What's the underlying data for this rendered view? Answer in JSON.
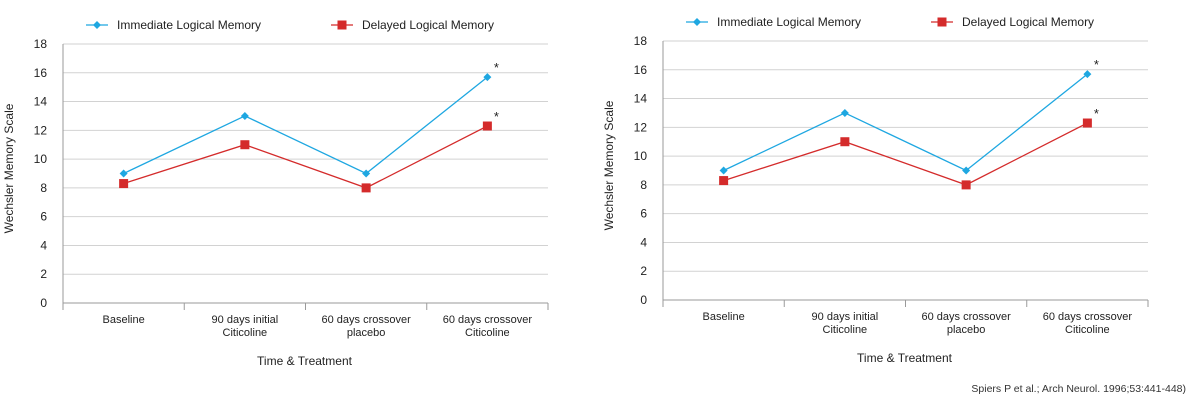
{
  "citation": "Spiers P et al.; Arch Neurol. 1996;53:441-448)",
  "chart_data": [
    {
      "type": "line",
      "ylabel": "Wechsler Memory Scale",
      "xlabel": "Time & Treatment",
      "ylim": [
        0,
        18
      ],
      "yticks": [
        0,
        2,
        4,
        6,
        8,
        10,
        12,
        14,
        16,
        18
      ],
      "grid": "horizontal",
      "legend": "top",
      "categories": [
        [
          "Baseline"
        ],
        [
          "90 days initial",
          "Citicoline"
        ],
        [
          "60 days crossover",
          "placebo"
        ],
        [
          "60 days crossover",
          "Citicoline"
        ]
      ],
      "series": [
        {
          "name": "Immediate Logical Memory",
          "marker": "diamond",
          "color": "#1ea7e1",
          "values": [
            9,
            13,
            9,
            15.7
          ]
        },
        {
          "name": "Delayed Logical Memory",
          "marker": "square",
          "color": "#d42b2b",
          "values": [
            8.3,
            11,
            8,
            12.3
          ]
        }
      ],
      "annotations": [
        {
          "text": "*",
          "series": 0,
          "index": 3
        },
        {
          "text": "*",
          "series": 1,
          "index": 3
        }
      ]
    },
    {
      "type": "line",
      "ylabel": "Wechsler Memory Scale",
      "xlabel": "Time & Treatment",
      "ylim": [
        0,
        18
      ],
      "yticks": [
        0,
        2,
        4,
        6,
        8,
        10,
        12,
        14,
        16,
        18
      ],
      "grid": "horizontal",
      "legend": "top",
      "categories": [
        [
          "Baseline"
        ],
        [
          "90 days initial",
          "Citicoline"
        ],
        [
          "60 days crossover",
          "placebo"
        ],
        [
          "60 days crossover",
          "Citicoline"
        ]
      ],
      "series": [
        {
          "name": "Immediate Logical Memory",
          "marker": "diamond",
          "color": "#1ea7e1",
          "values": [
            9,
            13,
            9,
            15.7
          ]
        },
        {
          "name": "Delayed Logical Memory",
          "marker": "square",
          "color": "#d42b2b",
          "values": [
            8.3,
            11,
            8,
            12.3
          ]
        }
      ],
      "annotations": [
        {
          "text": "*",
          "series": 0,
          "index": 3
        },
        {
          "text": "*",
          "series": 1,
          "index": 3
        }
      ]
    }
  ]
}
